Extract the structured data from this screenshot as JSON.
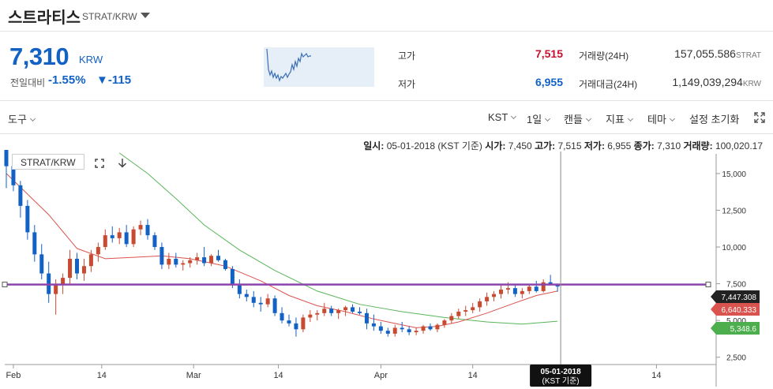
{
  "header": {
    "name": "스트라티스",
    "code": "STRAT/KRW"
  },
  "price": {
    "current": "7,310",
    "unit": "KRW",
    "change_label": "전일대비",
    "change_pct": "-1.55%",
    "change_abs": "▼-115"
  },
  "stats": {
    "high_label": "고가",
    "high_value": "7,515",
    "low_label": "저가",
    "low_value": "6,955",
    "volume_label": "거래량(24H)",
    "volume_value": "157,055.586",
    "volume_unit": "STRAT",
    "amount_label": "거래대금(24H)",
    "amount_value": "1,149,039,294",
    "amount_unit": "KRW"
  },
  "toolbar": {
    "tools": "도구",
    "timezone": "KST",
    "interval": "1일",
    "chart_type": "캔들",
    "indicators": "지표",
    "theme": "테마",
    "reset": "설정 초기화"
  },
  "info": {
    "date_label": "일시:",
    "date_value": "05-01-2018 (KST 기준)",
    "open_label": "시가:",
    "open_value": "7,450",
    "high_label": "고가:",
    "high_value": "7,515",
    "low_label": "저가:",
    "low_value": "6,955",
    "close_label": "종가:",
    "close_value": "7,310",
    "volume_label": "거래량:",
    "volume_value": "100,020.17"
  },
  "chart_data": {
    "type": "candlestick",
    "symbol": "STRAT/KRW",
    "colors": {
      "up": "#c84a31",
      "down": "#1261c4",
      "ma_short": "#d9534f",
      "ma_long": "#59b559",
      "hline": "#8e44ad"
    },
    "x_ticks": [
      "Feb",
      "14",
      "Mar",
      "14",
      "Apr",
      "14",
      "14"
    ],
    "y_ticks": [
      "15,000",
      "12,500",
      "10,000",
      "7,500",
      "5,000",
      "2,500"
    ],
    "ylim": [
      2000,
      16500
    ],
    "candles": [
      [
        16800,
        16800,
        14000,
        15500
      ],
      [
        15500,
        16000,
        13800,
        14200
      ],
      [
        14200,
        14500,
        12000,
        12800
      ],
      [
        12800,
        13200,
        10500,
        11000
      ],
      [
        11000,
        11500,
        9000,
        9500
      ],
      [
        9500,
        10200,
        7800,
        8200
      ],
      [
        8200,
        9000,
        6200,
        6800
      ],
      [
        6800,
        7800,
        5400,
        7400
      ],
      [
        7400,
        8200,
        6800,
        7900
      ],
      [
        7900,
        9800,
        7500,
        9200
      ],
      [
        9200,
        9600,
        7800,
        8200
      ],
      [
        8200,
        9200,
        7700,
        8700
      ],
      [
        8700,
        9800,
        8300,
        9500
      ],
      [
        9500,
        10300,
        9000,
        10000
      ],
      [
        10000,
        11200,
        9800,
        10800
      ],
      [
        10800,
        11400,
        10300,
        10600
      ],
      [
        10600,
        11300,
        10200,
        11000
      ],
      [
        11000,
        11500,
        10000,
        10200
      ],
      [
        10200,
        11400,
        10000,
        11200
      ],
      [
        11200,
        11800,
        10800,
        11500
      ],
      [
        11500,
        11900,
        10500,
        10800
      ],
      [
        10800,
        11000,
        9800,
        10000
      ],
      [
        10000,
        10300,
        8500,
        8800
      ],
      [
        8800,
        9600,
        8500,
        9200
      ],
      [
        9200,
        9600,
        8600,
        8800
      ],
      [
        8800,
        9100,
        8400,
        8900
      ],
      [
        8900,
        9300,
        8600,
        9100
      ],
      [
        9100,
        9600,
        8800,
        9300
      ],
      [
        9300,
        10000,
        8700,
        8900
      ],
      [
        8900,
        9500,
        8700,
        9400
      ],
      [
        9400,
        9800,
        9000,
        9100
      ],
      [
        9100,
        9200,
        8400,
        8500
      ],
      [
        8500,
        8700,
        7200,
        7400
      ],
      [
        7400,
        7800,
        6500,
        6800
      ],
      [
        6800,
        7100,
        6300,
        6600
      ],
      [
        6600,
        7000,
        5900,
        6200
      ],
      [
        6200,
        6600,
        5600,
        6100
      ],
      [
        6100,
        6800,
        5900,
        6500
      ],
      [
        6500,
        6700,
        5300,
        5500
      ],
      [
        5500,
        5900,
        4800,
        5000
      ],
      [
        5000,
        5400,
        4600,
        4800
      ],
      [
        4800,
        5200,
        3900,
        4400
      ],
      [
        4400,
        5400,
        4200,
        5200
      ],
      [
        5200,
        5700,
        4900,
        5400
      ],
      [
        5400,
        5700,
        5000,
        5500
      ],
      [
        5500,
        6200,
        5300,
        5800
      ],
      [
        5800,
        6000,
        5300,
        5500
      ],
      [
        5500,
        5800,
        5100,
        5700
      ],
      [
        5700,
        6000,
        5300,
        5900
      ],
      [
        5900,
        6100,
        5500,
        5600
      ],
      [
        5600,
        5900,
        5400,
        5500
      ],
      [
        5500,
        5800,
        4400,
        4800
      ],
      [
        4800,
        5400,
        4300,
        4600
      ],
      [
        4600,
        4900,
        4100,
        4300
      ],
      [
        4300,
        4500,
        3900,
        4100
      ],
      [
        4100,
        4700,
        3900,
        4500
      ],
      [
        4500,
        4900,
        4200,
        4400
      ],
      [
        4400,
        4600,
        4000,
        4200
      ],
      [
        4200,
        4500,
        4000,
        4300
      ],
      [
        4300,
        4700,
        4100,
        4600
      ],
      [
        4600,
        4800,
        4300,
        4400
      ],
      [
        4400,
        4800,
        4200,
        4700
      ],
      [
        4700,
        5100,
        4500,
        5000
      ],
      [
        5000,
        5500,
        4800,
        5300
      ],
      [
        5300,
        5800,
        5100,
        5600
      ],
      [
        5600,
        6000,
        5300,
        5700
      ],
      [
        5700,
        6200,
        5500,
        5900
      ],
      [
        5900,
        6500,
        5600,
        6300
      ],
      [
        6300,
        6900,
        6000,
        6600
      ],
      [
        6600,
        7000,
        6300,
        6800
      ],
      [
        6800,
        7400,
        6500,
        7100
      ],
      [
        7100,
        7600,
        6800,
        7200
      ],
      [
        7200,
        7400,
        6600,
        6800
      ],
      [
        6800,
        7200,
        6500,
        7000
      ],
      [
        7000,
        7500,
        6800,
        7300
      ],
      [
        7300,
        7700,
        6900,
        7000
      ],
      [
        7000,
        7800,
        6900,
        7600
      ],
      [
        7600,
        8100,
        7400,
        7500
      ],
      [
        7450,
        7515,
        6955,
        7310
      ]
    ],
    "ma_short": [
      [
        0,
        15000
      ],
      [
        6,
        12200
      ],
      [
        10,
        9900
      ],
      [
        14,
        9200
      ],
      [
        18,
        9300
      ],
      [
        22,
        9400
      ],
      [
        26,
        9200
      ],
      [
        31,
        8700
      ],
      [
        36,
        7700
      ],
      [
        40,
        6700
      ],
      [
        44,
        6000
      ],
      [
        48,
        5600
      ],
      [
        52,
        5100
      ],
      [
        55,
        4800
      ],
      [
        58,
        4500
      ],
      [
        61,
        4600
      ],
      [
        64,
        4900
      ],
      [
        68,
        5500
      ],
      [
        72,
        6200
      ],
      [
        75,
        6700
      ],
      [
        78,
        7000
      ]
    ],
    "ma_long": [
      [
        16,
        16400
      ],
      [
        20,
        15000
      ],
      [
        24,
        13300
      ],
      [
        28,
        11500
      ],
      [
        33,
        9800
      ],
      [
        38,
        8400
      ],
      [
        44,
        7000
      ],
      [
        50,
        6100
      ],
      [
        56,
        5600
      ],
      [
        62,
        5200
      ],
      [
        68,
        4900
      ],
      [
        73,
        4750
      ],
      [
        78,
        4950
      ]
    ],
    "hline_value": 7447.308,
    "right_labels": [
      {
        "value": 7447.308,
        "text": "7,447.308",
        "color": "#222222"
      },
      {
        "value": 6640.333,
        "text": "6,640.333",
        "color": "#d9534f"
      },
      {
        "value": 5348.6,
        "text": "5,348.6",
        "color": "#4cae4c"
      }
    ],
    "crosshair_date": "05-01-2018",
    "crosshair_sub": "(KST 기준)"
  }
}
